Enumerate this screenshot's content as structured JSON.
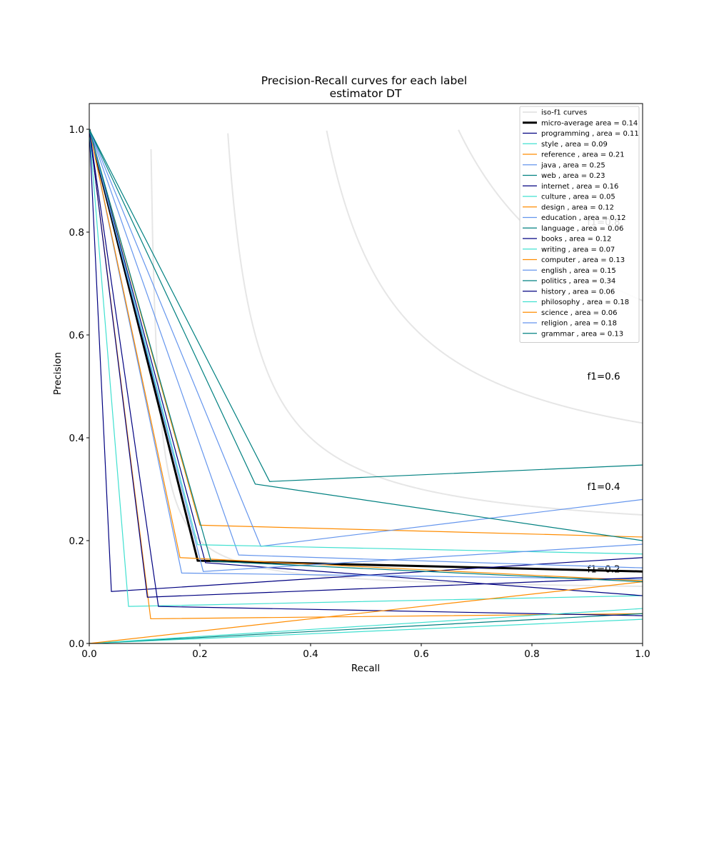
{
  "chart_data": {
    "type": "line",
    "title": "Precision-Recall curves for each label",
    "subtitle": "estimator DT",
    "xlabel": "Recall",
    "ylabel": "Precision",
    "xlim": [
      0.0,
      1.0
    ],
    "ylim": [
      0.0,
      1.05
    ],
    "xticks": [
      "0.0",
      "0.2",
      "0.4",
      "0.6",
      "0.8",
      "1.0"
    ],
    "yticks": [
      "0.0",
      "0.2",
      "0.4",
      "0.6",
      "0.8",
      "1.0"
    ],
    "grid": false,
    "legend_position": "top-right",
    "iso_f1": {
      "legend_label": "iso-f1 curves",
      "color": "#e6e6e6",
      "values": [
        0.2,
        0.4,
        0.6,
        0.8
      ],
      "labels": [
        "f1=0.2",
        "f1=0.4",
        "f1=0.6",
        "f1=0.8"
      ]
    },
    "series": [
      {
        "name": "micro-average area = 0.14",
        "color": "#000000",
        "width": 3,
        "points": [
          [
            0,
            1
          ],
          [
            0.196,
            0.161
          ],
          [
            1,
            0.14
          ]
        ]
      },
      {
        "name": "programming , area = 0.11",
        "color": "#000080",
        "width": 1.2,
        "points": [
          [
            0,
            1
          ],
          [
            0.04,
            0.101
          ],
          [
            1,
            0.167
          ]
        ]
      },
      {
        "name": "style , area = 0.09",
        "color": "#40e0d0",
        "width": 1.2,
        "points": [
          [
            0,
            1
          ],
          [
            0.071,
            0.072
          ],
          [
            1,
            0.093
          ]
        ]
      },
      {
        "name": "reference , area = 0.21",
        "color": "#ff8c00",
        "width": 1.2,
        "points": [
          [
            0,
            1
          ],
          [
            0.2,
            0.23
          ],
          [
            1,
            0.207
          ]
        ]
      },
      {
        "name": "java , area = 0.25",
        "color": "#6495ed",
        "width": 1.2,
        "points": [
          [
            0,
            1
          ],
          [
            0.31,
            0.189
          ],
          [
            1,
            0.28
          ]
        ]
      },
      {
        "name": "web , area = 0.23",
        "color": "#008080",
        "width": 1.2,
        "points": [
          [
            0,
            1
          ],
          [
            0.3,
            0.31
          ],
          [
            1,
            0.2
          ]
        ]
      },
      {
        "name": "internet , area = 0.16",
        "color": "#000080",
        "width": 1.2,
        "points": [
          [
            0,
            1
          ],
          [
            0.21,
            0.157
          ],
          [
            1,
            0.093
          ]
        ]
      },
      {
        "name": "culture , area = 0.05",
        "color": "#40e0d0",
        "width": 1.2,
        "points": [
          [
            0,
            0
          ],
          [
            1,
            0.047
          ]
        ]
      },
      {
        "name": "design , area = 0.12",
        "color": "#ff8c00",
        "width": 1.2,
        "points": [
          [
            0,
            1
          ],
          [
            0.111,
            0.048
          ],
          [
            1,
            0.058
          ]
        ]
      },
      {
        "name": "education , area = 0.12",
        "color": "#6495ed",
        "width": 1.2,
        "points": [
          [
            0,
            1
          ],
          [
            0.167,
            0.137
          ],
          [
            1,
            0.125
          ]
        ]
      },
      {
        "name": "language , area = 0.06",
        "color": "#008080",
        "width": 1.2,
        "points": [
          [
            0,
            0
          ],
          [
            1,
            0.058
          ]
        ]
      },
      {
        "name": "books , area = 0.12",
        "color": "#000080",
        "width": 1.2,
        "points": [
          [
            0,
            1
          ],
          [
            0.125,
            0.072
          ],
          [
            1,
            0.054
          ]
        ]
      },
      {
        "name": "writing , area = 0.07",
        "color": "#40e0d0",
        "width": 1.2,
        "points": [
          [
            0,
            0
          ],
          [
            1,
            0.068
          ]
        ]
      },
      {
        "name": "computer , area = 0.13",
        "color": "#ff8c00",
        "width": 1.2,
        "points": [
          [
            0,
            1
          ],
          [
            0.164,
            0.167
          ],
          [
            1,
            0.122
          ]
        ]
      },
      {
        "name": "english , area = 0.15",
        "color": "#6495ed",
        "width": 1.2,
        "points": [
          [
            0,
            1
          ],
          [
            0.27,
            0.172
          ],
          [
            1,
            0.147
          ]
        ]
      },
      {
        "name": "politics , area = 0.34",
        "color": "#008080",
        "width": 1.2,
        "points": [
          [
            0,
            1
          ],
          [
            0.326,
            0.315
          ],
          [
            1,
            0.347
          ]
        ]
      },
      {
        "name": "history , area = 0.06",
        "color": "#000080",
        "width": 1.2,
        "points": [
          [
            0,
            1
          ],
          [
            0.105,
            0.09
          ],
          [
            1,
            0.128
          ]
        ]
      },
      {
        "name": "philosophy , area = 0.18",
        "color": "#40e0d0",
        "width": 1.2,
        "points": [
          [
            0,
            1
          ],
          [
            0.196,
            0.192
          ],
          [
            1,
            0.174
          ]
        ]
      },
      {
        "name": "science , area = 0.06",
        "color": "#ff8c00",
        "width": 1.2,
        "points": [
          [
            0,
            0
          ],
          [
            1,
            0.12
          ]
        ]
      },
      {
        "name": "religion , area = 0.18",
        "color": "#6495ed",
        "width": 1.2,
        "points": [
          [
            0,
            1
          ],
          [
            0.206,
            0.14
          ],
          [
            1,
            0.193
          ]
        ]
      },
      {
        "name": "grammar , area = 0.13",
        "color": "#008080",
        "width": 1.2,
        "points": [
          [
            0,
            1
          ],
          [
            0.22,
            0.16
          ],
          [
            1,
            0.12
          ]
        ]
      }
    ]
  }
}
